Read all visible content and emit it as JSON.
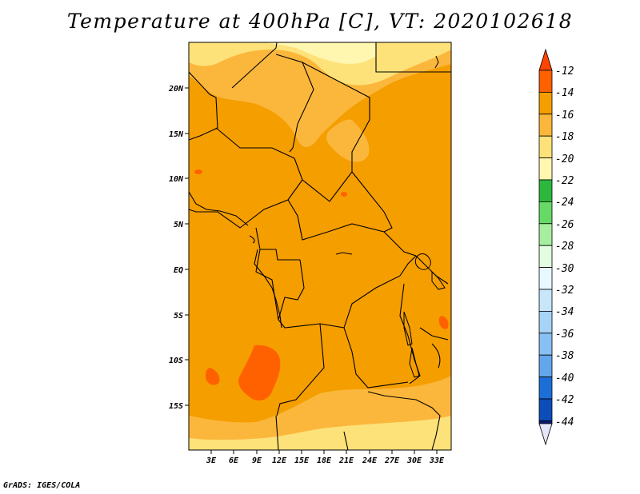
{
  "title": "Temperature at 400hPa [C], VT: 2020102618",
  "credit": "GrADS: IGES/COLA",
  "map": {
    "lat_labels": [
      "20N",
      "15N",
      "10N",
      "5N",
      "EQ",
      "5S",
      "10S",
      "15S"
    ],
    "lon_labels": [
      "3E",
      "6E",
      "9E",
      "12E",
      "15E",
      "18E",
      "21E",
      "24E",
      "27E",
      "30E",
      "33E"
    ]
  },
  "colorbar": {
    "labels": [
      "-12",
      "-14",
      "-16",
      "-18",
      "-20",
      "-22",
      "-24",
      "-26",
      "-28",
      "-30",
      "-32",
      "-34",
      "-36",
      "-38",
      "-40",
      "-42",
      "-44"
    ],
    "colors": [
      "#e8f8ff",
      "#9ff",
      "#0f0",
      "#f0f",
      "#ff0",
      "#ff4500",
      "#e06000",
      "#f5a000",
      "#f7b53a",
      "#fde27a",
      "#fff6b0",
      "#2db83d",
      "#66d966",
      "#a6eea0",
      "#e3fde0",
      "#e8f8ff",
      "#c7e6fa",
      "#a7d3f7",
      "#88c0f3",
      "#62a7ec",
      "#3c8ee6",
      "#1d6fd8",
      "#0c4dba",
      "#0b2896",
      "#0a1a70"
    ]
  },
  "palette": {
    "t_m14_m12": "#ff6100",
    "t_m16_m14": "#f59e00",
    "t_m18_m16": "#fbb73c",
    "t_m20_m18": "#fde27a",
    "t_m22_m20": "#fff6b0",
    "land_border": "#000000"
  }
}
